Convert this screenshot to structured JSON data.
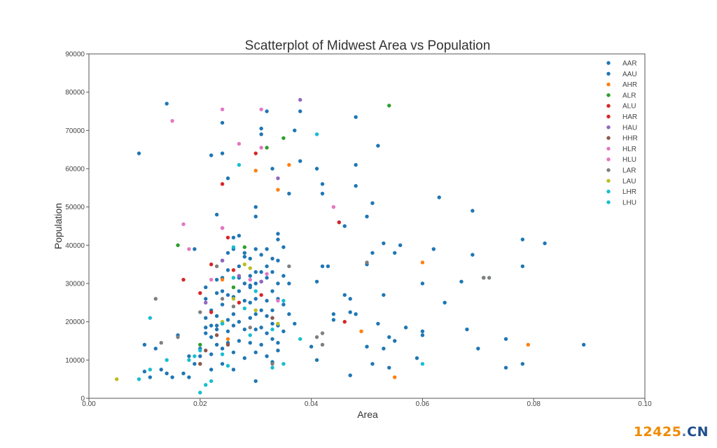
{
  "chart_data": {
    "type": "scatter",
    "title": "Scatterplot of Midwest Area vs Population",
    "xlabel": "Area",
    "ylabel": "Population",
    "xlim": [
      0.0,
      0.1
    ],
    "ylim": [
      0,
      90000
    ],
    "xticks": [
      "0.00",
      "0.02",
      "0.04",
      "0.06",
      "0.08",
      "0.10"
    ],
    "yticks": [
      "0",
      "10000",
      "20000",
      "30000",
      "40000",
      "50000",
      "60000",
      "70000",
      "80000",
      "90000"
    ],
    "grid": false,
    "legend_position": "top-right",
    "series": [
      {
        "name": "AAR",
        "color": "#1f77b4",
        "points": [
          [
            0.009,
            64000
          ],
          [
            0.01,
            14000
          ],
          [
            0.012,
            13000
          ],
          [
            0.014,
            77000
          ],
          [
            0.019,
            39000
          ],
          [
            0.021,
            17000
          ],
          [
            0.022,
            63500
          ],
          [
            0.023,
            48000
          ],
          [
            0.024,
            72000
          ],
          [
            0.024,
            64000
          ],
          [
            0.025,
            57500
          ],
          [
            0.026,
            42000
          ],
          [
            0.027,
            42500
          ],
          [
            0.028,
            37000
          ],
          [
            0.029,
            29000
          ],
          [
            0.03,
            50000
          ],
          [
            0.03,
            47500
          ],
          [
            0.031,
            70500
          ],
          [
            0.031,
            69000
          ],
          [
            0.032,
            75000
          ],
          [
            0.033,
            60000
          ],
          [
            0.034,
            43000
          ],
          [
            0.034,
            41500
          ],
          [
            0.035,
            39500
          ],
          [
            0.036,
            53500
          ],
          [
            0.037,
            70000
          ],
          [
            0.038,
            75000
          ],
          [
            0.038,
            62000
          ],
          [
            0.041,
            60000
          ],
          [
            0.042,
            56000
          ],
          [
            0.042,
            53500
          ],
          [
            0.045,
            46000
          ],
          [
            0.046,
            45000
          ],
          [
            0.048,
            73500
          ],
          [
            0.048,
            61000
          ],
          [
            0.048,
            55500
          ],
          [
            0.05,
            47500
          ],
          [
            0.05,
            35000
          ],
          [
            0.051,
            51000
          ],
          [
            0.051,
            38000
          ],
          [
            0.052,
            66000
          ],
          [
            0.053,
            40500
          ],
          [
            0.055,
            38000
          ],
          [
            0.056,
            40000
          ],
          [
            0.06,
            30000
          ],
          [
            0.062,
            39000
          ],
          [
            0.063,
            52500
          ],
          [
            0.067,
            30500
          ],
          [
            0.069,
            49000
          ],
          [
            0.069,
            37500
          ],
          [
            0.071,
            31500
          ],
          [
            0.078,
            41500
          ],
          [
            0.078,
            34500
          ],
          [
            0.082,
            40500
          ],
          [
            0.089,
            14000
          ]
        ]
      },
      {
        "name": "AAU",
        "color": "#1f77b4",
        "points": [
          [
            0.01,
            7000
          ],
          [
            0.011,
            5500
          ],
          [
            0.013,
            7500
          ],
          [
            0.014,
            6500
          ],
          [
            0.015,
            5500
          ],
          [
            0.016,
            16500
          ],
          [
            0.017,
            6500
          ],
          [
            0.018,
            5500
          ],
          [
            0.018,
            11000
          ],
          [
            0.019,
            9000
          ],
          [
            0.02,
            11000
          ],
          [
            0.02,
            13000
          ],
          [
            0.021,
            18500
          ],
          [
            0.021,
            21000
          ],
          [
            0.021,
            26000
          ],
          [
            0.021,
            29000
          ],
          [
            0.022,
            23000
          ],
          [
            0.022,
            19000
          ],
          [
            0.022,
            16000
          ],
          [
            0.022,
            11500
          ],
          [
            0.022,
            7500
          ],
          [
            0.023,
            31000
          ],
          [
            0.023,
            27500
          ],
          [
            0.023,
            21500
          ],
          [
            0.023,
            19000
          ],
          [
            0.023,
            18000
          ],
          [
            0.023,
            14000
          ],
          [
            0.024,
            36000
          ],
          [
            0.024,
            31500
          ],
          [
            0.024,
            28000
          ],
          [
            0.024,
            24500
          ],
          [
            0.024,
            19500
          ],
          [
            0.024,
            13000
          ],
          [
            0.024,
            9000
          ],
          [
            0.025,
            38000
          ],
          [
            0.025,
            33500
          ],
          [
            0.025,
            27000
          ],
          [
            0.025,
            20500
          ],
          [
            0.025,
            17500
          ],
          [
            0.025,
            14500
          ],
          [
            0.026,
            39000
          ],
          [
            0.026,
            26500
          ],
          [
            0.026,
            22000
          ],
          [
            0.026,
            19000
          ],
          [
            0.026,
            12000
          ],
          [
            0.026,
            7500
          ],
          [
            0.027,
            34500
          ],
          [
            0.027,
            31500
          ],
          [
            0.027,
            28000
          ],
          [
            0.027,
            20000
          ],
          [
            0.027,
            15000
          ],
          [
            0.028,
            38000
          ],
          [
            0.028,
            30000
          ],
          [
            0.028,
            25500
          ],
          [
            0.028,
            18000
          ],
          [
            0.028,
            10500
          ],
          [
            0.029,
            36500
          ],
          [
            0.029,
            32000
          ],
          [
            0.029,
            29500
          ],
          [
            0.029,
            25000
          ],
          [
            0.029,
            21000
          ],
          [
            0.029,
            14500
          ],
          [
            0.03,
            39000
          ],
          [
            0.03,
            33000
          ],
          [
            0.03,
            30000
          ],
          [
            0.03,
            26000
          ],
          [
            0.03,
            22000
          ],
          [
            0.03,
            18000
          ],
          [
            0.03,
            12000
          ],
          [
            0.03,
            4500
          ],
          [
            0.031,
            37500
          ],
          [
            0.031,
            33000
          ],
          [
            0.031,
            30500
          ],
          [
            0.031,
            23000
          ],
          [
            0.031,
            18500
          ],
          [
            0.031,
            14000
          ],
          [
            0.032,
            39000
          ],
          [
            0.032,
            34500
          ],
          [
            0.032,
            31500
          ],
          [
            0.032,
            25500
          ],
          [
            0.032,
            21500
          ],
          [
            0.032,
            17000
          ],
          [
            0.032,
            11000
          ],
          [
            0.033,
            36500
          ],
          [
            0.033,
            33000
          ],
          [
            0.033,
            28000
          ],
          [
            0.033,
            23000
          ],
          [
            0.033,
            19500
          ],
          [
            0.033,
            15500
          ],
          [
            0.033,
            9500
          ],
          [
            0.034,
            36000
          ],
          [
            0.034,
            30000
          ],
          [
            0.034,
            26000
          ],
          [
            0.034,
            19000
          ],
          [
            0.034,
            14500
          ],
          [
            0.034,
            12500
          ],
          [
            0.035,
            32000
          ],
          [
            0.035,
            24500
          ],
          [
            0.035,
            17500
          ],
          [
            0.036,
            30000
          ],
          [
            0.036,
            22000
          ],
          [
            0.037,
            19500
          ],
          [
            0.04,
            13500
          ],
          [
            0.041,
            30500
          ],
          [
            0.041,
            10000
          ],
          [
            0.042,
            34500
          ],
          [
            0.043,
            34500
          ],
          [
            0.044,
            22000
          ],
          [
            0.044,
            20500
          ],
          [
            0.046,
            27000
          ],
          [
            0.047,
            26000
          ],
          [
            0.047,
            22500
          ],
          [
            0.047,
            6000
          ],
          [
            0.048,
            22000
          ],
          [
            0.05,
            13500
          ],
          [
            0.051,
            9000
          ],
          [
            0.052,
            19500
          ],
          [
            0.053,
            13000
          ],
          [
            0.053,
            27000
          ],
          [
            0.054,
            16000
          ],
          [
            0.054,
            8000
          ],
          [
            0.055,
            15000
          ],
          [
            0.057,
            18500
          ],
          [
            0.059,
            10500
          ],
          [
            0.06,
            17500
          ],
          [
            0.06,
            16500
          ],
          [
            0.064,
            25000
          ],
          [
            0.068,
            18000
          ],
          [
            0.07,
            13000
          ],
          [
            0.075,
            15500
          ],
          [
            0.075,
            8000
          ],
          [
            0.078,
            9000
          ]
        ]
      },
      {
        "name": "AHR",
        "color": "#ff7f0e",
        "points": [
          [
            0.024,
            31000
          ],
          [
            0.025,
            15500
          ],
          [
            0.03,
            59500
          ],
          [
            0.034,
            54500
          ],
          [
            0.036,
            61000
          ],
          [
            0.049,
            17500
          ],
          [
            0.055,
            5500
          ],
          [
            0.06,
            35500
          ],
          [
            0.079,
            14000
          ]
        ]
      },
      {
        "name": "ALR",
        "color": "#2ca02c",
        "points": [
          [
            0.016,
            40000
          ],
          [
            0.02,
            14000
          ],
          [
            0.026,
            29000
          ],
          [
            0.028,
            39500
          ],
          [
            0.032,
            65500
          ],
          [
            0.035,
            68000
          ],
          [
            0.054,
            76500
          ]
        ]
      },
      {
        "name": "ALU",
        "color": "#d62728",
        "points": [
          [
            0.022,
            35000
          ],
          [
            0.024,
            56000
          ],
          [
            0.025,
            42000
          ],
          [
            0.03,
            64000
          ],
          [
            0.045,
            46000
          ],
          [
            0.046,
            20000
          ]
        ]
      },
      {
        "name": "HAR",
        "color": "#d62728",
        "points": [
          [
            0.017,
            31000
          ],
          [
            0.02,
            27500
          ],
          [
            0.022,
            22500
          ],
          [
            0.024,
            44500
          ],
          [
            0.026,
            33500
          ],
          [
            0.027,
            25000
          ],
          [
            0.031,
            27000
          ]
        ]
      },
      {
        "name": "HAU",
        "color": "#9467bd",
        "points": [
          [
            0.021,
            25000
          ],
          [
            0.024,
            36000
          ],
          [
            0.027,
            32000
          ],
          [
            0.031,
            30500
          ],
          [
            0.034,
            57500
          ],
          [
            0.038,
            78000
          ]
        ]
      },
      {
        "name": "HHR",
        "color": "#8c564b",
        "points": [
          [
            0.02,
            9000
          ],
          [
            0.021,
            12500
          ],
          [
            0.023,
            16500
          ],
          [
            0.025,
            14000
          ],
          [
            0.033,
            21000
          ]
        ]
      },
      {
        "name": "HLR",
        "color": "#e377c2",
        "points": [
          [
            0.015,
            72500
          ],
          [
            0.017,
            45500
          ],
          [
            0.018,
            39000
          ],
          [
            0.024,
            75500
          ],
          [
            0.027,
            66500
          ],
          [
            0.031,
            75500
          ],
          [
            0.044,
            50000
          ]
        ]
      },
      {
        "name": "HLU",
        "color": "#e377c2",
        "points": [
          [
            0.022,
            31000
          ],
          [
            0.024,
            44500
          ],
          [
            0.029,
            31000
          ],
          [
            0.031,
            65500
          ],
          [
            0.032,
            32500
          ],
          [
            0.034,
            25500
          ]
        ]
      },
      {
        "name": "LAR",
        "color": "#7f7f7f",
        "points": [
          [
            0.012,
            26000
          ],
          [
            0.013,
            14500
          ],
          [
            0.016,
            16000
          ],
          [
            0.02,
            22500
          ],
          [
            0.023,
            34500
          ],
          [
            0.024,
            26000
          ],
          [
            0.026,
            24000
          ],
          [
            0.029,
            18500
          ],
          [
            0.033,
            9000
          ],
          [
            0.036,
            34500
          ],
          [
            0.041,
            16000
          ],
          [
            0.042,
            14000
          ],
          [
            0.042,
            17000
          ],
          [
            0.05,
            35500
          ],
          [
            0.071,
            31500
          ],
          [
            0.072,
            31500
          ]
        ]
      },
      {
        "name": "LAU",
        "color": "#bcbd22",
        "points": [
          [
            0.005,
            5000
          ],
          [
            0.024,
            20000
          ],
          [
            0.026,
            26000
          ],
          [
            0.028,
            35000
          ],
          [
            0.029,
            34000
          ],
          [
            0.03,
            23000
          ],
          [
            0.034,
            19500
          ]
        ]
      },
      {
        "name": "LHR",
        "color": "#17becf",
        "points": [
          [
            0.011,
            21000
          ],
          [
            0.02,
            12500
          ],
          [
            0.024,
            19500
          ],
          [
            0.026,
            31500
          ],
          [
            0.029,
            16500
          ],
          [
            0.033,
            8000
          ],
          [
            0.035,
            25500
          ],
          [
            0.038,
            15500
          ]
        ]
      },
      {
        "name": "LHU",
        "color": "#17becf",
        "points": [
          [
            0.009,
            5000
          ],
          [
            0.011,
            7500
          ],
          [
            0.014,
            10000
          ],
          [
            0.018,
            10000
          ],
          [
            0.019,
            11000
          ],
          [
            0.02,
            1500
          ],
          [
            0.021,
            3500
          ],
          [
            0.022,
            4500
          ],
          [
            0.024,
            11500
          ],
          [
            0.025,
            8500
          ],
          [
            0.026,
            39500
          ],
          [
            0.027,
            61000
          ],
          [
            0.028,
            23500
          ],
          [
            0.03,
            28000
          ],
          [
            0.033,
            18000
          ],
          [
            0.035,
            9000
          ],
          [
            0.041,
            69000
          ],
          [
            0.06,
            9000
          ]
        ]
      }
    ]
  },
  "watermark": {
    "number": "12425",
    "dot": ".",
    "suffix": "CN"
  }
}
